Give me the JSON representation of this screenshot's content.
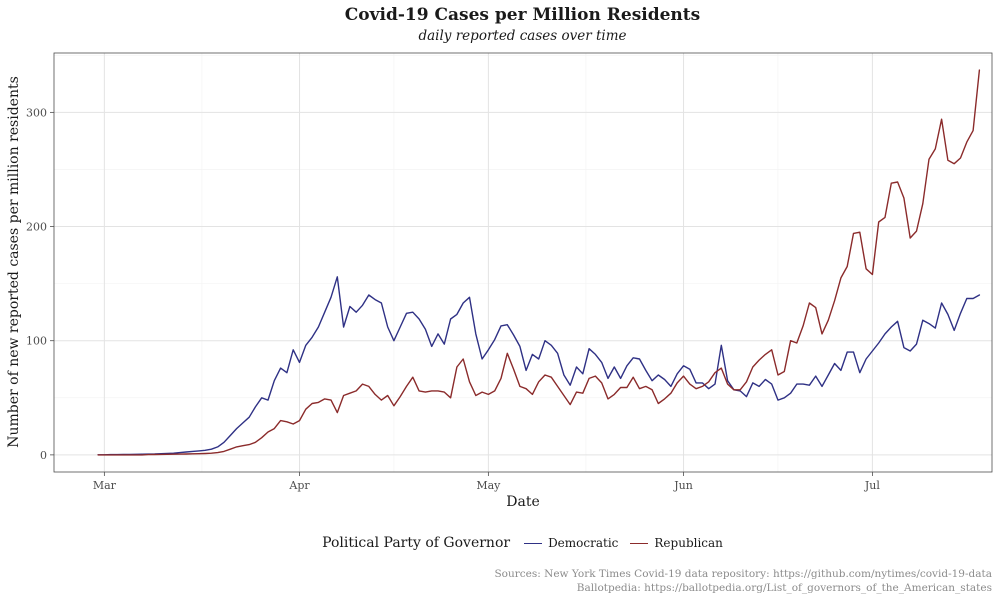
{
  "chart_data": {
    "type": "line",
    "title": "Covid-19 Cases per Million Residents",
    "subtitle": "daily reported cases over time",
    "xlabel": "Date",
    "ylabel": "Number of new reported cases per million residents",
    "x_start": "2020-02-29",
    "x_ticks": [
      {
        "date": "2020-03-01",
        "label": "Mar"
      },
      {
        "date": "2020-04-01",
        "label": "Apr"
      },
      {
        "date": "2020-05-01",
        "label": "May"
      },
      {
        "date": "2020-06-01",
        "label": "Jun"
      },
      {
        "date": "2020-07-01",
        "label": "Jul"
      }
    ],
    "xlim": [
      "2020-02-22",
      "2020-07-20"
    ],
    "y_ticks": [
      0,
      100,
      200,
      300
    ],
    "ylim": [
      -15,
      352
    ],
    "grid": true,
    "legend_position": "bottom",
    "legend_title": "Political Party of Governor",
    "series": [
      {
        "name": "Democratic",
        "color": "#2f3185",
        "values": [
          0.1,
          0.1,
          0.2,
          0.2,
          0.3,
          0.4,
          0.5,
          0.6,
          0.7,
          0.8,
          1,
          1.2,
          1.5,
          2,
          2.5,
          3,
          3.5,
          4,
          5,
          7,
          11,
          17,
          23,
          28,
          33,
          42,
          50,
          48,
          65,
          76,
          72,
          92,
          81,
          96,
          103,
          112,
          125,
          138,
          156,
          112,
          130,
          125,
          131,
          140,
          136,
          133,
          112,
          100,
          112,
          124,
          125,
          119,
          110,
          95,
          106,
          97,
          119,
          123,
          133,
          138,
          106,
          84,
          92,
          101,
          113,
          114,
          105,
          95,
          74,
          88,
          84,
          100,
          96,
          89,
          70,
          61,
          77,
          71,
          93,
          88,
          81,
          67,
          77,
          67,
          78,
          85,
          84,
          74,
          65,
          70,
          66,
          60,
          71,
          78,
          75,
          63,
          63,
          58,
          62,
          96,
          65,
          57,
          56,
          51,
          63,
          60,
          66,
          62,
          48,
          50,
          54,
          62,
          62,
          61,
          69,
          60,
          70,
          80,
          74,
          90,
          90,
          72,
          84,
          91,
          98,
          106,
          112,
          117,
          94,
          91,
          97,
          118,
          115,
          111,
          133,
          123,
          109,
          124,
          137,
          137,
          140
        ]
      },
      {
        "name": "Republican",
        "color": "#8b2b2b",
        "values": [
          0,
          0,
          0,
          0,
          0,
          0,
          0,
          0,
          0.2,
          0.3,
          0.4,
          0.5,
          0.6,
          0.7,
          0.8,
          0.9,
          1,
          1.2,
          1.5,
          2,
          3,
          5,
          7,
          8,
          9,
          11,
          15,
          20,
          23,
          30,
          29,
          27,
          30,
          40,
          45,
          46,
          49,
          48,
          37,
          52,
          54,
          56,
          62,
          60,
          53,
          48,
          52,
          43,
          51,
          60,
          68,
          56,
          55,
          56,
          56,
          55,
          50,
          77,
          84,
          64,
          52,
          55,
          53,
          56,
          67,
          89,
          75,
          60,
          58,
          53,
          64,
          70,
          68,
          60,
          52,
          44,
          55,
          54,
          67,
          69,
          63,
          49,
          53,
          59,
          59,
          68,
          58,
          60,
          57,
          45,
          49,
          54,
          63,
          69,
          62,
          58,
          60,
          64,
          72,
          76,
          62,
          57,
          57,
          64,
          77,
          83,
          88,
          92,
          70,
          73,
          100,
          98,
          113,
          133,
          129,
          106,
          118,
          135,
          155,
          165,
          194,
          195,
          163,
          158,
          204,
          208,
          238,
          239,
          225,
          190,
          196,
          220,
          259,
          268,
          294,
          258,
          255,
          260,
          274,
          284,
          337
        ]
      }
    ]
  },
  "legend": {
    "title": "Political Party of Governor",
    "items": [
      "Democratic",
      "Republican"
    ]
  },
  "caption": {
    "line1": "Sources: New York Times Covid-19 data repository: https://github.com/nytimes/covid-19-data",
    "line2": "Ballotpedia: https://ballotpedia.org/List_of_governors_of_the_American_states"
  }
}
